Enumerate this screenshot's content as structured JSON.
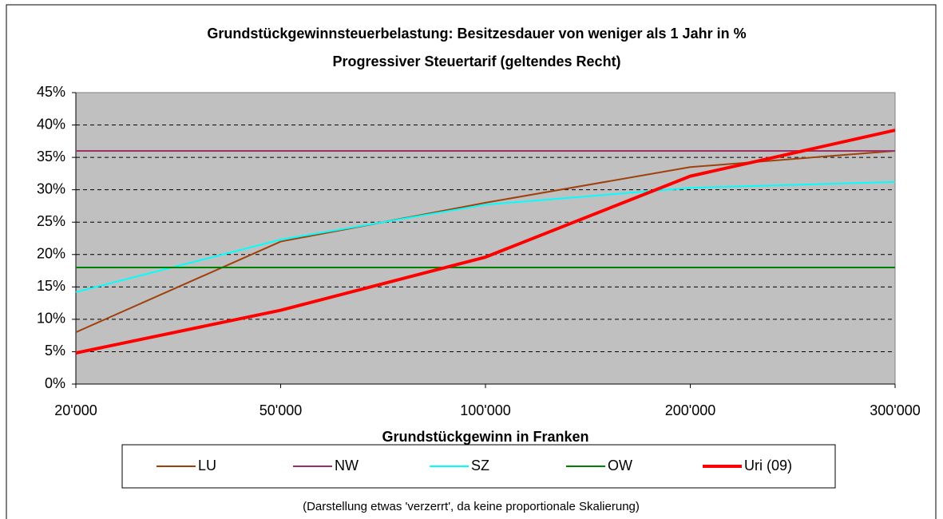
{
  "chart_data": {
    "type": "line",
    "title": "Grundstückgewinnsteuerbelastung: Besitzesdauer von weniger als 1 Jahr in %",
    "subtitle": "Progressiver Steuertarif (geltendes Recht)",
    "x_label": "Grundstückgewinn in Franken",
    "note": "(Darstellung etwas 'verzerrt', da keine proportionale Skalierung)",
    "categories": [
      "20'000",
      "50'000",
      "100'000",
      "200'000",
      "300'000"
    ],
    "ylim": [
      0,
      45
    ],
    "yticks": [
      {
        "value": 0,
        "label": "0%"
      },
      {
        "value": 5,
        "label": "5%"
      },
      {
        "value": 10,
        "label": "10%"
      },
      {
        "value": 15,
        "label": "15%"
      },
      {
        "value": 20,
        "label": "20%"
      },
      {
        "value": 25,
        "label": "25%"
      },
      {
        "value": 30,
        "label": "30%"
      },
      {
        "value": 35,
        "label": "35%"
      },
      {
        "value": 40,
        "label": "40%"
      },
      {
        "value": 45,
        "label": "45%"
      }
    ],
    "grid": true,
    "legend": "bottom",
    "series": [
      {
        "name": "LU",
        "color": "#a0410d",
        "line_width": 2,
        "values": [
          8,
          22,
          28,
          33.5,
          36
        ]
      },
      {
        "name": "NW",
        "color": "#993366",
        "line_width": 2,
        "values": [
          36,
          36,
          36,
          36,
          36
        ]
      },
      {
        "name": "SZ",
        "color": "#00ffff",
        "line_width": 2,
        "values": [
          14.2,
          22.3,
          27.7,
          30.3,
          31.2
        ]
      },
      {
        "name": "OW",
        "color": "#008000",
        "line_width": 2,
        "values": [
          18,
          18,
          18,
          18,
          18
        ]
      },
      {
        "name": "Uri (09)",
        "color": "#ff0000",
        "line_width": 4,
        "values": [
          4.8,
          11.4,
          19.6,
          32.1,
          39.2
        ]
      }
    ]
  }
}
